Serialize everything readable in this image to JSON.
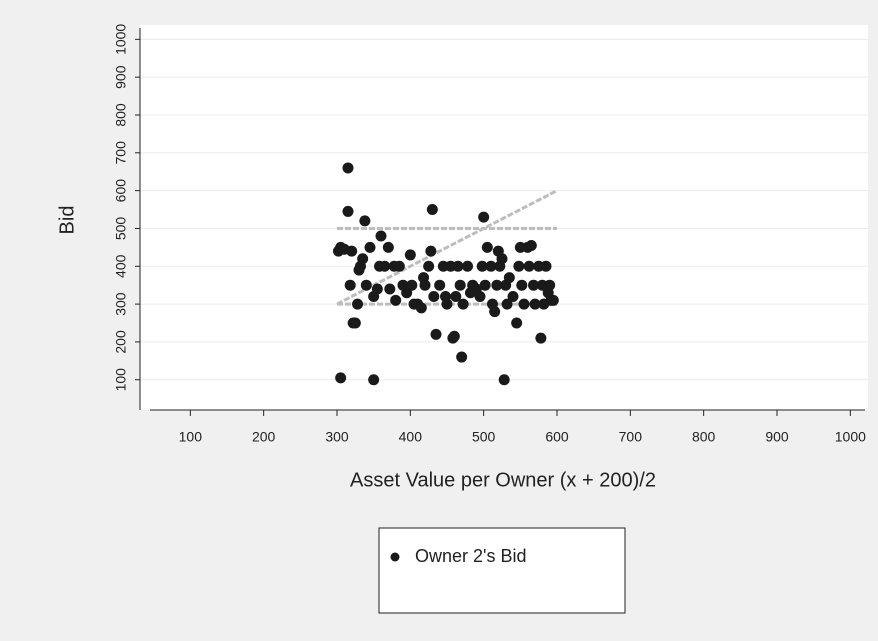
{
  "chart_data": {
    "type": "scatter",
    "x_label": "Asset Value per Owner (x + 200)/2",
    "y_label": "Bid",
    "xlim": [
      45,
      1020
    ],
    "ylim": [
      20,
      1030
    ],
    "xticks": [
      100,
      200,
      300,
      400,
      500,
      600,
      700,
      800,
      900,
      1000
    ],
    "yticks": [
      100,
      200,
      300,
      400,
      500,
      600,
      700,
      800,
      900,
      1000
    ],
    "grid": true,
    "reference_lines": [
      {
        "color": "#bdbdbd",
        "x": [
          300,
          600
        ],
        "y": [
          500,
          500
        ]
      },
      {
        "color": "#bdbdbd",
        "x": [
          300,
          600
        ],
        "y": [
          300,
          300
        ]
      },
      {
        "color": "#bdbdbd",
        "x": [
          300,
          600
        ],
        "y": [
          300,
          600
        ]
      }
    ],
    "series": [
      {
        "name": "Owner 2's Bid",
        "color": "#1a1a1a",
        "x": [
          302,
          305,
          310,
          315,
          315,
          318,
          320,
          322,
          325,
          328,
          330,
          332,
          335,
          338,
          340,
          345,
          350,
          350,
          305,
          355,
          358,
          360,
          365,
          370,
          372,
          378,
          380,
          385,
          390,
          395,
          400,
          402,
          405,
          410,
          415,
          418,
          420,
          425,
          428,
          430,
          432,
          435,
          440,
          445,
          448,
          450,
          455,
          458,
          460,
          462,
          465,
          468,
          470,
          472,
          478,
          482,
          485,
          490,
          495,
          498,
          500,
          502,
          505,
          510,
          512,
          515,
          518,
          520,
          522,
          525,
          528,
          530,
          532,
          535,
          540,
          545,
          548,
          550,
          552,
          555,
          560,
          562,
          565,
          568,
          570,
          575,
          578,
          580,
          582,
          585,
          588,
          590,
          592,
          595
        ],
        "values": [
          440,
          450,
          445,
          660,
          545,
          350,
          440,
          250,
          250,
          300,
          390,
          400,
          420,
          520,
          350,
          450,
          320,
          100,
          105,
          340,
          400,
          480,
          400,
          450,
          340,
          400,
          310,
          400,
          350,
          330,
          430,
          350,
          300,
          300,
          290,
          370,
          350,
          400,
          440,
          550,
          320,
          220,
          350,
          400,
          320,
          300,
          400,
          210,
          215,
          320,
          400,
          350,
          160,
          300,
          400,
          330,
          350,
          340,
          320,
          400,
          530,
          350,
          450,
          400,
          300,
          280,
          350,
          440,
          400,
          420,
          100,
          350,
          300,
          370,
          320,
          250,
          400,
          450,
          350,
          300,
          450,
          400,
          455,
          350,
          300,
          400,
          210,
          350,
          300,
          400,
          330,
          350,
          310,
          310
        ]
      }
    ]
  }
}
